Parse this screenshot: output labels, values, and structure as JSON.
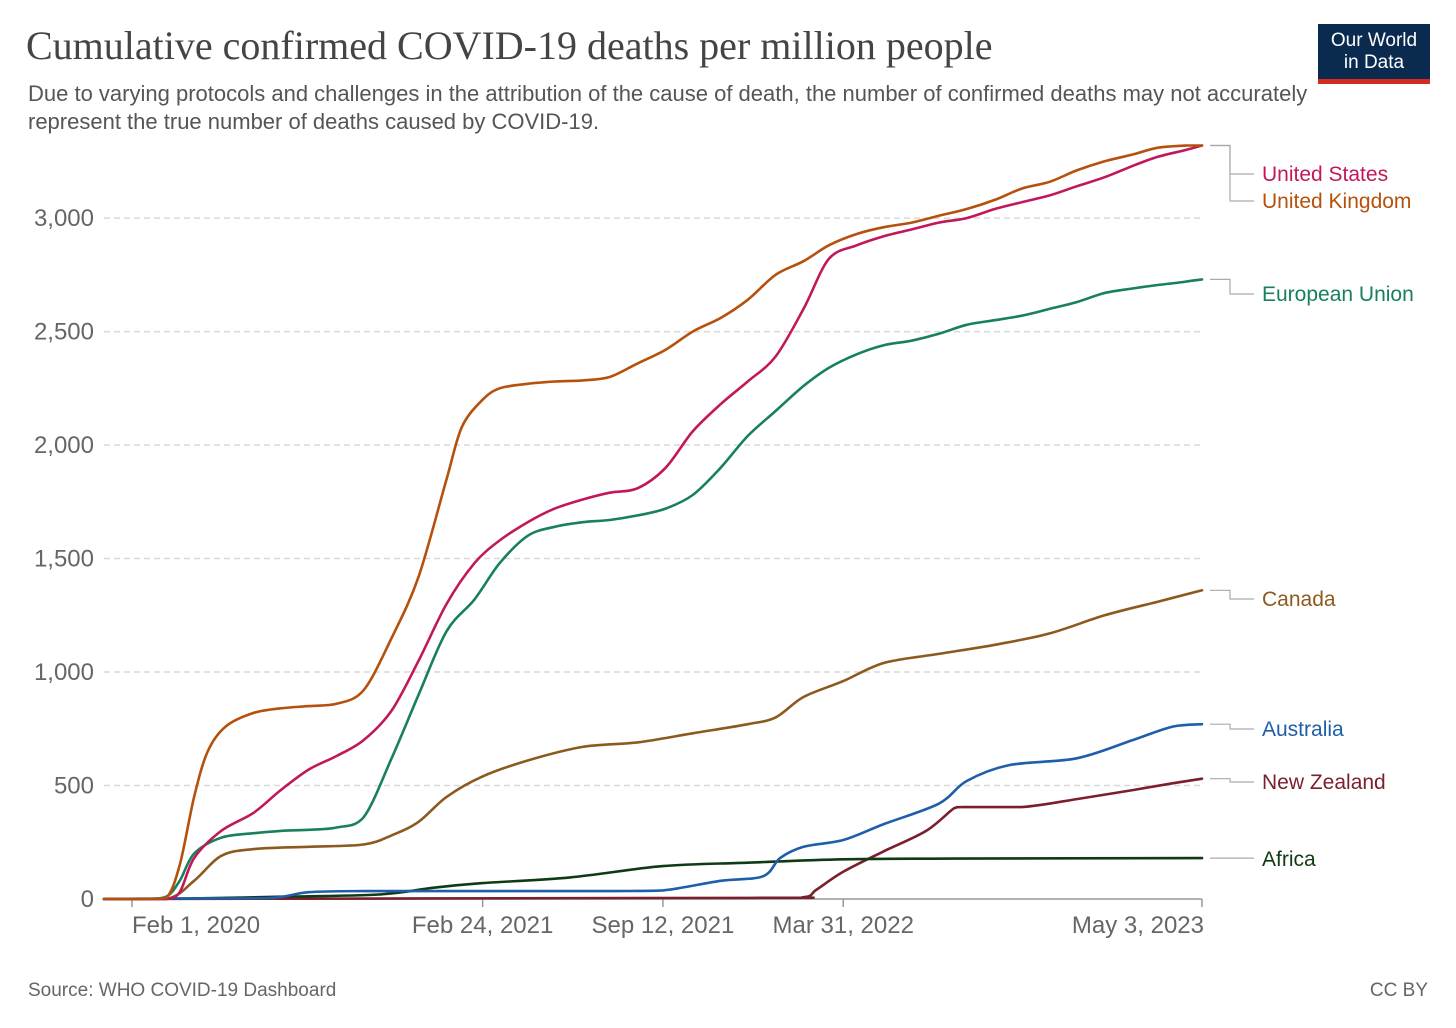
{
  "title": "Cumulative confirmed COVID-19 deaths per million people",
  "subtitle": "Due to varying protocols and challenges in the attribution of the cause of death, the number of confirmed deaths may not accurately represent the true number of deaths caused by COVID-19.",
  "logo": {
    "line1": "Our World",
    "line2": "in Data",
    "bg_color": "#0b2a4f",
    "accent_color": "#d42b21"
  },
  "footer": {
    "source": "Source: WHO COVID-19 Dashboard",
    "license": "CC BY"
  },
  "chart_data": {
    "type": "line",
    "title": "Cumulative confirmed COVID-19 deaths per million people",
    "xlabel": "",
    "ylabel": "",
    "x_start": "2020-01-01",
    "x_end": "2023-05-03",
    "xlim": [
      "2020-01-01",
      "2023-05-03"
    ],
    "ylim": [
      0,
      3300
    ],
    "x_ticks": [
      {
        "date": "2020-02-01",
        "label": "Feb 1, 2020"
      },
      {
        "date": "2021-02-24",
        "label": "Feb 24, 2021"
      },
      {
        "date": "2021-09-12",
        "label": "Sep 12, 2021"
      },
      {
        "date": "2022-03-31",
        "label": "Mar 31, 2022"
      },
      {
        "date": "2023-05-03",
        "label": "May 3, 2023"
      }
    ],
    "y_ticks": [
      {
        "value": 0,
        "label": "0"
      },
      {
        "value": 500,
        "label": "500"
      },
      {
        "value": 1000,
        "label": "1,000"
      },
      {
        "value": 1500,
        "label": "1,500"
      },
      {
        "value": 2000,
        "label": "2,000"
      },
      {
        "value": 2500,
        "label": "2,500"
      },
      {
        "value": 3000,
        "label": "3,000"
      }
    ],
    "grid": true,
    "legend": "line-end labels on right",
    "series": [
      {
        "name": "United States",
        "color": "#c2185b",
        "x": [
          "2020-01-01",
          "2020-02-15",
          "2020-03-10",
          "2020-03-25",
          "2020-04-10",
          "2020-05-10",
          "2020-06-15",
          "2020-07-15",
          "2020-08-15",
          "2020-09-15",
          "2020-10-15",
          "2020-11-15",
          "2020-12-15",
          "2021-01-15",
          "2021-02-15",
          "2021-03-15",
          "2021-04-15",
          "2021-05-15",
          "2021-06-15",
          "2021-07-15",
          "2021-08-15",
          "2021-09-15",
          "2021-10-15",
          "2021-11-15",
          "2021-12-15",
          "2022-01-15",
          "2022-02-15",
          "2022-03-15",
          "2022-04-15",
          "2022-05-15",
          "2022-06-15",
          "2022-07-15",
          "2022-08-15",
          "2022-09-15",
          "2022-10-15",
          "2022-11-15",
          "2022-12-15",
          "2023-01-15",
          "2023-02-15",
          "2023-03-15",
          "2023-04-15",
          "2023-05-03"
        ],
        "y": [
          0,
          0,
          0,
          30,
          180,
          300,
          380,
          480,
          570,
          630,
          700,
          830,
          1050,
          1300,
          1480,
          1580,
          1660,
          1720,
          1760,
          1790,
          1810,
          1900,
          2060,
          2180,
          2280,
          2390,
          2600,
          2820,
          2880,
          2920,
          2950,
          2980,
          3000,
          3040,
          3070,
          3100,
          3140,
          3180,
          3230,
          3270,
          3300,
          3320
        ]
      },
      {
        "name": "United Kingdom",
        "color": "#b5510c",
        "x": [
          "2020-01-01",
          "2020-02-15",
          "2020-03-10",
          "2020-03-25",
          "2020-04-10",
          "2020-04-25",
          "2020-05-15",
          "2020-06-15",
          "2020-07-15",
          "2020-08-15",
          "2020-09-15",
          "2020-10-15",
          "2020-11-15",
          "2020-12-15",
          "2021-01-15",
          "2021-02-01",
          "2021-02-24",
          "2021-03-15",
          "2021-04-15",
          "2021-05-15",
          "2021-06-15",
          "2021-07-15",
          "2021-08-15",
          "2021-09-15",
          "2021-10-15",
          "2021-11-15",
          "2021-12-15",
          "2022-01-15",
          "2022-02-15",
          "2022-03-15",
          "2022-04-15",
          "2022-05-15",
          "2022-06-15",
          "2022-07-15",
          "2022-08-15",
          "2022-09-15",
          "2022-10-15",
          "2022-11-15",
          "2022-12-15",
          "2023-01-15",
          "2023-02-15",
          "2023-03-15",
          "2023-04-15",
          "2023-05-03"
        ],
        "y": [
          0,
          0,
          5,
          150,
          450,
          650,
          760,
          820,
          840,
          850,
          860,
          920,
          1150,
          1420,
          1850,
          2080,
          2200,
          2250,
          2270,
          2280,
          2285,
          2300,
          2360,
          2420,
          2500,
          2560,
          2640,
          2750,
          2810,
          2880,
          2930,
          2960,
          2980,
          3010,
          3040,
          3080,
          3130,
          3160,
          3210,
          3250,
          3280,
          3310,
          3320,
          3320
        ]
      },
      {
        "name": "European Union",
        "color": "#18805b",
        "x": [
          "2020-01-01",
          "2020-02-15",
          "2020-03-10",
          "2020-03-25",
          "2020-04-10",
          "2020-05-10",
          "2020-06-15",
          "2020-07-15",
          "2020-08-15",
          "2020-09-15",
          "2020-10-15",
          "2020-11-15",
          "2020-12-15",
          "2021-01-15",
          "2021-02-15",
          "2021-03-15",
          "2021-04-15",
          "2021-05-15",
          "2021-06-15",
          "2021-07-15",
          "2021-08-15",
          "2021-09-15",
          "2021-10-15",
          "2021-11-15",
          "2021-12-15",
          "2022-01-15",
          "2022-02-15",
          "2022-03-15",
          "2022-04-15",
          "2022-05-15",
          "2022-06-15",
          "2022-07-15",
          "2022-08-15",
          "2022-09-15",
          "2022-10-15",
          "2022-11-15",
          "2022-12-15",
          "2023-01-15",
          "2023-02-15",
          "2023-03-15",
          "2023-04-15",
          "2023-05-03"
        ],
        "y": [
          0,
          0,
          10,
          80,
          200,
          270,
          290,
          300,
          305,
          315,
          360,
          620,
          900,
          1180,
          1320,
          1480,
          1600,
          1640,
          1660,
          1670,
          1690,
          1720,
          1780,
          1900,
          2040,
          2150,
          2260,
          2340,
          2400,
          2440,
          2460,
          2490,
          2530,
          2550,
          2570,
          2600,
          2630,
          2670,
          2690,
          2705,
          2720,
          2730
        ]
      },
      {
        "name": "Canada",
        "color": "#8c5a1f",
        "x": [
          "2020-01-01",
          "2020-03-10",
          "2020-04-10",
          "2020-05-10",
          "2020-06-15",
          "2020-08-15",
          "2020-10-15",
          "2020-11-15",
          "2020-12-15",
          "2021-01-15",
          "2021-02-24",
          "2021-04-15",
          "2021-06-15",
          "2021-08-15",
          "2021-10-15",
          "2021-12-15",
          "2022-01-15",
          "2022-02-15",
          "2022-03-31",
          "2022-05-15",
          "2022-07-15",
          "2022-09-15",
          "2022-11-15",
          "2023-01-15",
          "2023-03-15",
          "2023-05-03"
        ],
        "y": [
          0,
          0,
          80,
          190,
          220,
          230,
          240,
          280,
          340,
          450,
          540,
          610,
          670,
          690,
          730,
          770,
          800,
          890,
          960,
          1040,
          1080,
          1120,
          1170,
          1250,
          1310,
          1360
        ]
      },
      {
        "name": "Australia",
        "color": "#1f5ea8",
        "x": [
          "2020-01-01",
          "2020-03-15",
          "2020-07-01",
          "2020-08-15",
          "2020-10-15",
          "2021-02-24",
          "2021-07-15",
          "2021-09-12",
          "2021-11-15",
          "2022-01-01",
          "2022-01-20",
          "2022-02-15",
          "2022-03-31",
          "2022-05-15",
          "2022-07-15",
          "2022-08-15",
          "2022-10-01",
          "2022-12-15",
          "2023-02-15",
          "2023-04-01",
          "2023-05-03"
        ],
        "y": [
          0,
          2,
          4,
          30,
          35,
          35,
          35,
          38,
          80,
          100,
          180,
          230,
          260,
          330,
          420,
          520,
          590,
          620,
          700,
          760,
          770
        ]
      },
      {
        "name": "New Zealand",
        "color": "#7a1f2b",
        "x": [
          "2020-01-01",
          "2021-12-15",
          "2022-02-15",
          "2022-03-01",
          "2022-03-31",
          "2022-05-15",
          "2022-07-01",
          "2022-08-01",
          "2022-08-10",
          "2022-10-15",
          "2022-12-15",
          "2023-02-15",
          "2023-04-01",
          "2023-05-03"
        ],
        "y": [
          0,
          5,
          8,
          40,
          120,
          210,
          300,
          400,
          405,
          405,
          440,
          480,
          510,
          530
        ]
      },
      {
        "name": "Africa",
        "color": "#0f3b14",
        "x": [
          "2020-01-01",
          "2020-04-01",
          "2020-07-15",
          "2020-11-01",
          "2021-01-01",
          "2021-02-24",
          "2021-06-01",
          "2021-09-12",
          "2021-12-15",
          "2022-03-31",
          "2022-08-01",
          "2023-05-03"
        ],
        "y": [
          0,
          2,
          10,
          20,
          50,
          70,
          95,
          145,
          160,
          175,
          178,
          180
        ]
      }
    ]
  }
}
